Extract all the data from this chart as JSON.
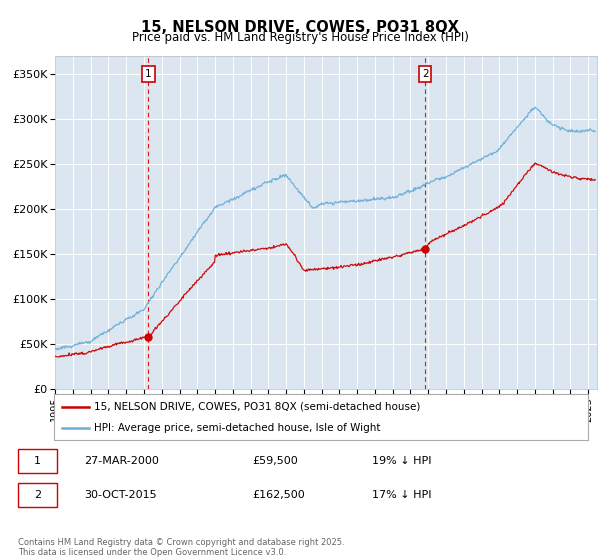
{
  "title": "15, NELSON DRIVE, COWES, PO31 8QX",
  "subtitle": "Price paid vs. HM Land Registry's House Price Index (HPI)",
  "ylabel_ticks": [
    "£0",
    "£50K",
    "£100K",
    "£150K",
    "£200K",
    "£250K",
    "£300K",
    "£350K"
  ],
  "ytick_values": [
    0,
    50000,
    100000,
    150000,
    200000,
    250000,
    300000,
    350000
  ],
  "ylim": [
    0,
    370000
  ],
  "xlim_start": 1995.0,
  "xlim_end": 2025.5,
  "marker1_x": 2000.24,
  "marker2_x": 2015.83,
  "legend_line1": "15, NELSON DRIVE, COWES, PO31 8QX (semi-detached house)",
  "legend_line2": "HPI: Average price, semi-detached house, Isle of Wight",
  "row1_date": "27-MAR-2000",
  "row1_price": "£59,500",
  "row1_pct": "19% ↓ HPI",
  "row2_date": "30-OCT-2015",
  "row2_price": "£162,500",
  "row2_pct": "17% ↓ HPI",
  "footnote": "Contains HM Land Registry data © Crown copyright and database right 2025.\nThis data is licensed under the Open Government Licence v3.0.",
  "hpi_color": "#6baed6",
  "price_color": "#cc0000",
  "bg_color": "#dce6f1",
  "vline_color": "#dd0000",
  "grid_color": "#ffffff",
  "box_color": "#cc0000"
}
